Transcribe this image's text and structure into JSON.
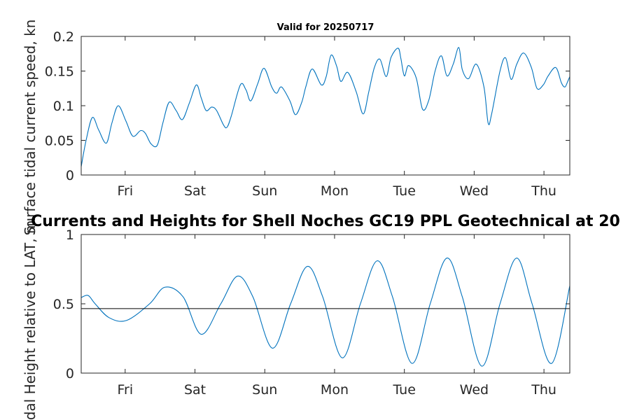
{
  "chart_data": [
    {
      "type": "line",
      "title": "Valid for 20250717",
      "xlabel": "",
      "ylabel": "Surface tidal current speed, kn",
      "xlim": [
        0,
        7
      ],
      "ylim": [
        0,
        0.2
      ],
      "yticks": [
        "0",
        "0.05",
        "0.1",
        "0.15",
        "0.2"
      ],
      "xtick_positions": [
        0.63,
        1.63,
        2.63,
        3.63,
        4.63,
        5.63,
        6.63
      ],
      "xtick_labels": [
        "Fri",
        "Sat",
        "Sun",
        "Mon",
        "Tue",
        "Wed",
        "Thu"
      ],
      "grid": false,
      "series": [
        {
          "color": "#0072bd",
          "x": [
            0,
            0.07,
            0.16,
            0.25,
            0.36,
            0.44,
            0.53,
            0.64,
            0.74,
            0.85,
            0.92,
            1.0,
            1.09,
            1.17,
            1.26,
            1.36,
            1.45,
            1.55,
            1.65,
            1.72,
            1.79,
            1.87,
            1.94,
            2.04,
            2.09,
            2.15,
            2.28,
            2.36,
            2.43,
            2.53,
            2.62,
            2.73,
            2.8,
            2.87,
            2.99,
            3.07,
            3.16,
            3.22,
            3.31,
            3.44,
            3.51,
            3.58,
            3.66,
            3.72,
            3.82,
            3.94,
            4.04,
            4.12,
            4.2,
            4.28,
            4.37,
            4.44,
            4.54,
            4.58,
            4.63,
            4.69,
            4.8,
            4.89,
            4.98,
            5.07,
            5.16,
            5.24,
            5.33,
            5.41,
            5.46,
            5.55,
            5.66,
            5.77,
            5.83,
            5.88,
            6.0,
            6.08,
            6.16,
            6.24,
            6.34,
            6.45,
            6.53,
            6.62,
            6.69,
            6.8,
            6.88,
            6.93,
            6.97,
            7.0
          ],
          "y": [
            0.012,
            0.05,
            0.083,
            0.065,
            0.046,
            0.075,
            0.1,
            0.078,
            0.056,
            0.064,
            0.06,
            0.045,
            0.043,
            0.075,
            0.105,
            0.093,
            0.08,
            0.104,
            0.13,
            0.111,
            0.093,
            0.098,
            0.093,
            0.072,
            0.069,
            0.085,
            0.13,
            0.123,
            0.107,
            0.132,
            0.154,
            0.127,
            0.118,
            0.127,
            0.107,
            0.087,
            0.105,
            0.128,
            0.153,
            0.13,
            0.142,
            0.173,
            0.157,
            0.135,
            0.148,
            0.12,
            0.088,
            0.12,
            0.155,
            0.167,
            0.142,
            0.17,
            0.183,
            0.168,
            0.143,
            0.158,
            0.14,
            0.095,
            0.108,
            0.15,
            0.172,
            0.143,
            0.16,
            0.184,
            0.152,
            0.139,
            0.16,
            0.127,
            0.075,
            0.088,
            0.15,
            0.169,
            0.138,
            0.16,
            0.176,
            0.155,
            0.125,
            0.13,
            0.143,
            0.155,
            0.133,
            0.127,
            0.135,
            0.142
          ]
        }
      ]
    },
    {
      "type": "line",
      "title": "Currents and Heights for Shell Noches   GC19 PPL  Geotechnical at 20",
      "xlabel": "",
      "ylabel": "Tidal Height relative to LAT, m",
      "xlim": [
        0,
        7
      ],
      "ylim": [
        0,
        1
      ],
      "yticks": [
        "0",
        "0.5",
        "1"
      ],
      "xtick_positions": [
        0.63,
        1.63,
        2.63,
        3.63,
        4.63,
        5.63,
        6.63
      ],
      "xtick_labels": [
        "Fri",
        "Sat",
        "Sun",
        "Mon",
        "Tue",
        "Wed",
        "Thu"
      ],
      "grid": false,
      "reference_line": 0.465,
      "series": [
        {
          "color": "#0072bd",
          "x": [
            0,
            0.1,
            0.2,
            0.4,
            0.65,
            0.98,
            1.2,
            1.46,
            1.72,
            2.0,
            2.24,
            2.46,
            2.74,
            3.0,
            3.24,
            3.46,
            3.74,
            4.0,
            4.24,
            4.46,
            4.74,
            5.0,
            5.24,
            5.46,
            5.74,
            6.0,
            6.24,
            6.46,
            6.74,
            7.0
          ],
          "y": [
            0.545,
            0.56,
            0.5,
            0.4,
            0.38,
            0.5,
            0.62,
            0.55,
            0.28,
            0.5,
            0.7,
            0.55,
            0.18,
            0.5,
            0.77,
            0.55,
            0.11,
            0.5,
            0.81,
            0.55,
            0.07,
            0.5,
            0.83,
            0.55,
            0.05,
            0.5,
            0.83,
            0.5,
            0.07,
            0.63
          ]
        }
      ]
    }
  ]
}
